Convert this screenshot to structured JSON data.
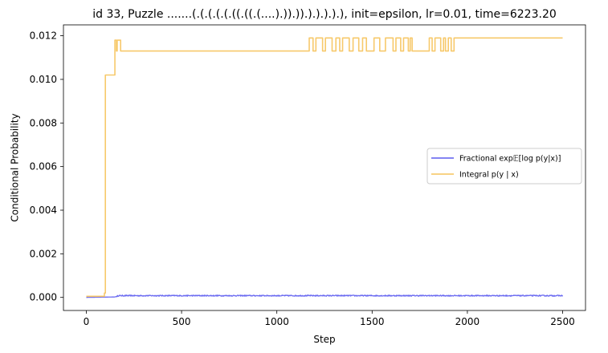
{
  "chart_data": {
    "type": "line",
    "title": "id 33, Puzzle .......(.(.(.(.(.((.((.(....).)).)).).).).).), init=epsilon, lr=0.01, time=6223.20",
    "xlabel": "Step",
    "ylabel": "Conditional Probability",
    "xlim": [
      -120,
      2620
    ],
    "ylim": [
      -0.0006,
      0.0125
    ],
    "xticks": [
      0,
      500,
      1000,
      1500,
      2000,
      2500
    ],
    "xtick_labels": [
      "0",
      "500",
      "1000",
      "1500",
      "2000",
      "2500"
    ],
    "yticks": [
      0.0,
      0.002,
      0.004,
      0.006,
      0.008,
      0.01,
      0.012
    ],
    "ytick_labels": [
      "0.000",
      "0.002",
      "0.004",
      "0.006",
      "0.008",
      "0.010",
      "0.012"
    ],
    "grid": false,
    "legend_placement": "center-right",
    "series": [
      {
        "name": "Fractional exp𝔼[log p(y|x)]",
        "color": "#5b5bef",
        "type": "noisy-baseline",
        "x_range": [
          0,
          2500
        ],
        "baseline_points": [
          [
            0,
            0.0
          ],
          [
            150,
            2e-05
          ],
          [
            170,
            8e-05
          ],
          [
            2500,
            8e-05
          ]
        ],
        "noise_amplitude": 5e-05
      },
      {
        "name": "Integral p(y | x)",
        "color": "#f6c35b",
        "type": "step",
        "points": [
          [
            0,
            5e-05
          ],
          [
            95,
            5e-05
          ],
          [
            95,
            0.0002
          ],
          [
            100,
            0.0002
          ],
          [
            100,
            0.0102
          ],
          [
            150,
            0.0102
          ],
          [
            150,
            0.0118
          ],
          [
            158,
            0.0118
          ],
          [
            158,
            0.0113
          ],
          [
            162,
            0.0113
          ],
          [
            162,
            0.0118
          ],
          [
            180,
            0.0118
          ],
          [
            180,
            0.0113
          ],
          [
            1170,
            0.0113
          ],
          [
            1170,
            0.0119
          ],
          [
            1190,
            0.0119
          ],
          [
            1190,
            0.0113
          ],
          [
            1205,
            0.0113
          ],
          [
            1205,
            0.0119
          ],
          [
            1240,
            0.0119
          ],
          [
            1240,
            0.0113
          ],
          [
            1255,
            0.0113
          ],
          [
            1255,
            0.0119
          ],
          [
            1290,
            0.0119
          ],
          [
            1290,
            0.0113
          ],
          [
            1310,
            0.0113
          ],
          [
            1310,
            0.0119
          ],
          [
            1330,
            0.0119
          ],
          [
            1330,
            0.0113
          ],
          [
            1345,
            0.0113
          ],
          [
            1345,
            0.0119
          ],
          [
            1380,
            0.0119
          ],
          [
            1380,
            0.0113
          ],
          [
            1400,
            0.0113
          ],
          [
            1400,
            0.0119
          ],
          [
            1430,
            0.0119
          ],
          [
            1430,
            0.0113
          ],
          [
            1450,
            0.0113
          ],
          [
            1450,
            0.0119
          ],
          [
            1470,
            0.0119
          ],
          [
            1470,
            0.0113
          ],
          [
            1510,
            0.0113
          ],
          [
            1510,
            0.0119
          ],
          [
            1540,
            0.0119
          ],
          [
            1540,
            0.0113
          ],
          [
            1570,
            0.0113
          ],
          [
            1570,
            0.0119
          ],
          [
            1610,
            0.0119
          ],
          [
            1610,
            0.0113
          ],
          [
            1625,
            0.0113
          ],
          [
            1625,
            0.0119
          ],
          [
            1650,
            0.0119
          ],
          [
            1650,
            0.0113
          ],
          [
            1665,
            0.0113
          ],
          [
            1665,
            0.0119
          ],
          [
            1690,
            0.0119
          ],
          [
            1690,
            0.0113
          ],
          [
            1700,
            0.0113
          ],
          [
            1700,
            0.0119
          ],
          [
            1710,
            0.0119
          ],
          [
            1710,
            0.0113
          ],
          [
            1800,
            0.0113
          ],
          [
            1800,
            0.0119
          ],
          [
            1815,
            0.0119
          ],
          [
            1815,
            0.0113
          ],
          [
            1830,
            0.0113
          ],
          [
            1830,
            0.0119
          ],
          [
            1860,
            0.0119
          ],
          [
            1860,
            0.0113
          ],
          [
            1875,
            0.0113
          ],
          [
            1875,
            0.0119
          ],
          [
            1885,
            0.0119
          ],
          [
            1885,
            0.0113
          ],
          [
            1900,
            0.0113
          ],
          [
            1900,
            0.0119
          ],
          [
            1915,
            0.0119
          ],
          [
            1915,
            0.0113
          ],
          [
            1930,
            0.0113
          ],
          [
            1930,
            0.0119
          ],
          [
            2500,
            0.0119
          ]
        ]
      }
    ]
  }
}
